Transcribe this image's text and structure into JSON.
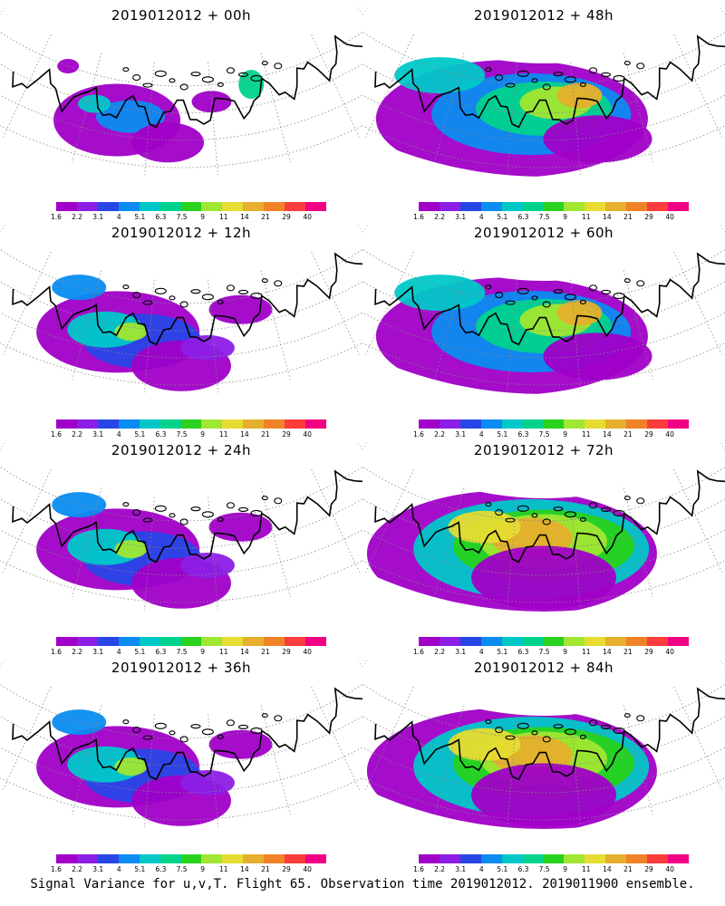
{
  "panels": [
    {
      "id": "p00",
      "title": "2019012012 + 00h",
      "intensity": 0
    },
    {
      "id": "p48",
      "title": "2019012012 + 48h",
      "intensity": 2
    },
    {
      "id": "p12",
      "title": "2019012012 + 12h",
      "intensity": 1
    },
    {
      "id": "p60",
      "title": "2019012012 + 60h",
      "intensity": 2
    },
    {
      "id": "p24",
      "title": "2019012012 + 24h",
      "intensity": 1
    },
    {
      "id": "p72",
      "title": "2019012012 + 72h",
      "intensity": 3
    },
    {
      "id": "p36",
      "title": "2019012012 + 36h",
      "intensity": 1
    },
    {
      "id": "p84",
      "title": "2019012012 + 84h",
      "intensity": 3
    }
  ],
  "colorbar": {
    "ticks": [
      "1.6",
      "2.2",
      "3.1",
      "4",
      "5.1",
      "6.3",
      "7.5",
      "9",
      "11",
      "14",
      "21",
      "29",
      "40"
    ],
    "colors": [
      "#a000c8",
      "#8c1ee6",
      "#2846e6",
      "#0a8cf0",
      "#00c8c8",
      "#00d28c",
      "#28d21e",
      "#a0e632",
      "#e6dc32",
      "#e6af2d",
      "#f08228",
      "#fa3c3c",
      "#f00082"
    ]
  },
  "caption": "Signal Variance for u,v,T. Flight 65. Observation time 2019012012. 2019011900 ensemble."
}
